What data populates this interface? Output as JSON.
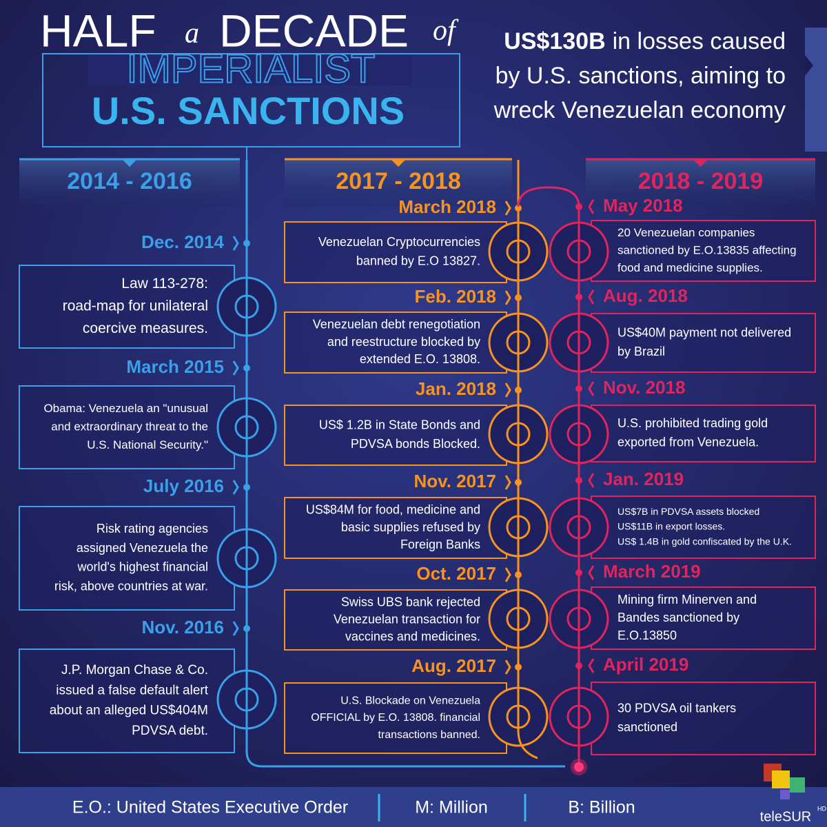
{
  "title": {
    "line1": [
      "HALF",
      "a",
      "DECADE",
      "of"
    ],
    "line2": "IMPERIALIST",
    "line3": "U.S. SANCTIONS"
  },
  "headline": {
    "emphasis": "US$130B",
    "lines": [
      "in losses caused",
      "by U.S. sanctions, aiming to",
      "wreck Venezuelan economy"
    ]
  },
  "columns": [
    {
      "heading": "2014 - 2016",
      "events": [
        {
          "date": "Dec. 2014",
          "text": [
            "Law 113-278:",
            "road-map for unilateral",
            "coercive measures."
          ]
        },
        {
          "date": "March 2015",
          "text": [
            "Obama: Venezuela an \"unusual",
            "and extraordinary threat to the",
            "U.S. National Security.\""
          ]
        },
        {
          "date": "July 2016",
          "text": [
            "Risk rating agencies",
            "assigned Venezuela the",
            "world's highest financial",
            "risk, above countries at war."
          ]
        },
        {
          "date": "Nov. 2016",
          "text": [
            "J.P. Morgan Chase & Co.",
            "issued a false default alert",
            "about an alleged US$404M",
            "PDVSA debt."
          ]
        }
      ]
    },
    {
      "heading": "2017 - 2018",
      "events": [
        {
          "date": "March 2018",
          "text": [
            "Venezuelan Cryptocurrencies",
            "banned by E.O 13827."
          ]
        },
        {
          "date": "Feb. 2018",
          "text": [
            "Venezuelan debt renegotiation",
            "and reestructure blocked by",
            "extended E.O. 13808."
          ]
        },
        {
          "date": "Jan. 2018",
          "text": [
            "US$ 1.2B in State Bonds and",
            "PDVSA bonds Blocked."
          ]
        },
        {
          "date": "Nov. 2017",
          "text": [
            "US$84M for food, medicine and",
            "basic supplies refused by",
            "Foreign Banks"
          ]
        },
        {
          "date": "Oct. 2017",
          "text": [
            "Swiss UBS bank rejected",
            "Venezuelan transaction for",
            "vaccines and medicines."
          ]
        },
        {
          "date": "Aug. 2017",
          "text": [
            "U.S. Blockade on Venezuela",
            "OFFICIAL by E.O. 13808.  financial",
            "transactions banned."
          ]
        }
      ]
    },
    {
      "heading": "2018 - 2019",
      "events": [
        {
          "date": "May 2018",
          "text": [
            "20 Venezuelan companies",
            "sanctioned by E.O.13835 affecting",
            "food and medicine supplies."
          ]
        },
        {
          "date": "Aug. 2018",
          "text": [
            "US$40M payment not delivered",
            "by Brazil"
          ]
        },
        {
          "date": "Nov. 2018",
          "text": [
            "U.S. prohibited trading gold",
            "exported from Venezuela."
          ]
        },
        {
          "date": "Jan. 2019",
          "text": [
            "US$7B  in PDVSA assets blocked",
            "US$11B in export losses.",
            "US$ 1.4B in gold confiscated by the U.K."
          ]
        },
        {
          "date": "March 2019",
          "text": [
            "Mining firm Minerven and",
            "Bandes sanctioned by",
            "E.O.13850"
          ]
        },
        {
          "date": "April 2019",
          "text": [
            "30 PDVSA oil tankers",
            "sanctioned"
          ]
        }
      ]
    }
  ],
  "footer": {
    "legend": [
      "E.O.: United States Executive Order",
      "M: Million",
      "B: Billion"
    ],
    "logo": "teleSUR",
    "logo_badge": "HD"
  }
}
